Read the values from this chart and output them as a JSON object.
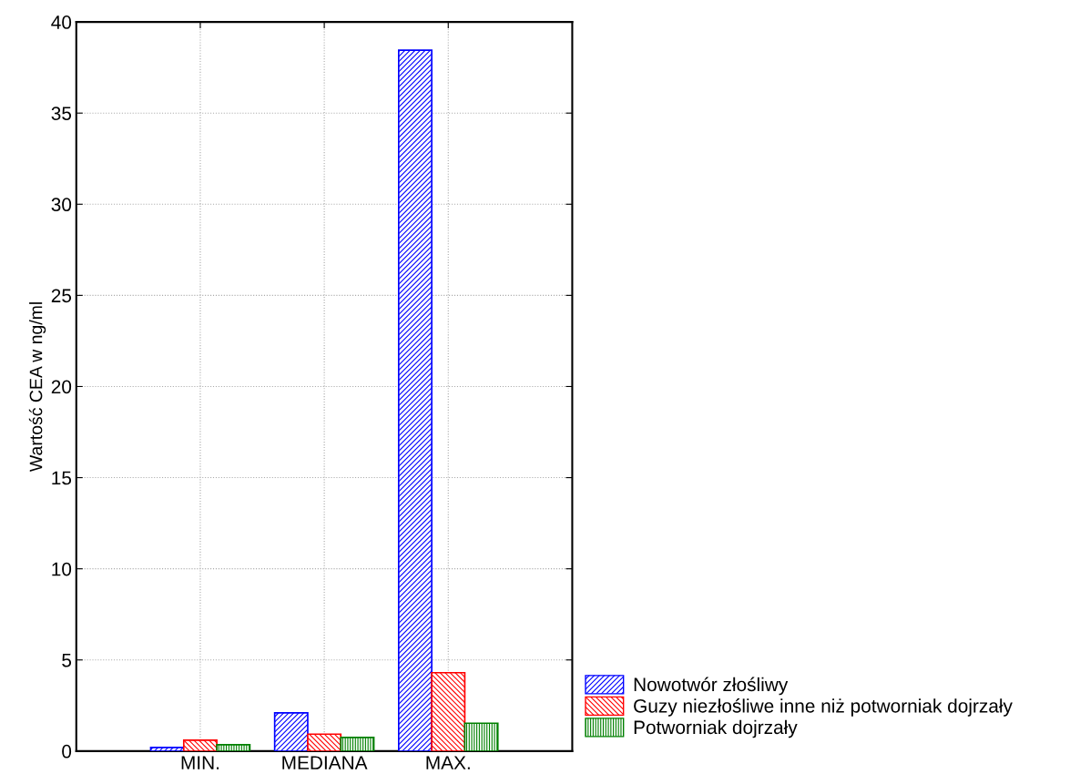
{
  "chart_data": {
    "type": "bar",
    "ylabel": "Wartość CEA w ng/ml",
    "categories": [
      "MIN.",
      "MEDIANA",
      "MAX."
    ],
    "series": [
      {
        "name": "Nowotwór złośliwy",
        "color": "#0000ff",
        "values": [
          0.2,
          2.1,
          38.45
        ]
      },
      {
        "name": "Guzy niezłośliwe inne niż potworniak dojrzały",
        "color": "#ff0000",
        "values": [
          0.6,
          0.93,
          4.3
        ]
      },
      {
        "name": "Potworniak dojrzały",
        "color": "#008000",
        "values": [
          0.35,
          0.75,
          1.53
        ]
      }
    ],
    "ylim": [
      0,
      40
    ],
    "yticks": [
      0,
      5,
      10,
      15,
      20,
      25,
      30,
      35,
      40
    ],
    "grid": true,
    "legend": "bottom right"
  }
}
